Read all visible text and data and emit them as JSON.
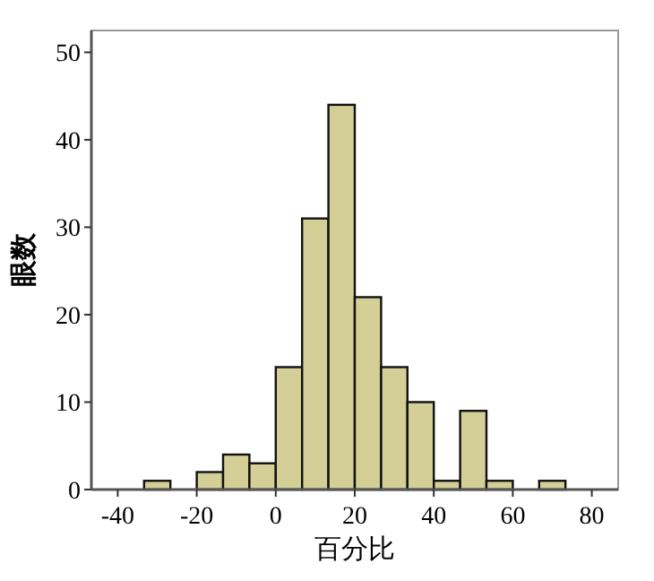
{
  "chart_data": {
    "type": "histogram",
    "xlabel": "百分比",
    "ylabel": "眼数",
    "bins": [
      -33.33,
      -26.67,
      -20,
      -13.33,
      -6.67,
      0,
      6.67,
      13.33,
      20,
      26.67,
      33.33,
      40,
      46.67,
      53.33,
      60,
      66.67,
      73.33
    ],
    "values": [
      1,
      0,
      2,
      4,
      3,
      14,
      31,
      44,
      22,
      14,
      10,
      1,
      9,
      1,
      0,
      1
    ],
    "color": "#d3cf96",
    "xlim": [
      -46.67,
      86.67
    ],
    "xticks": [
      -40,
      -20,
      0,
      20,
      40,
      60,
      80
    ],
    "ylim": [
      0,
      52.5
    ],
    "yticks": [
      0,
      10,
      20,
      30,
      40,
      50
    ],
    "grid": false
  }
}
